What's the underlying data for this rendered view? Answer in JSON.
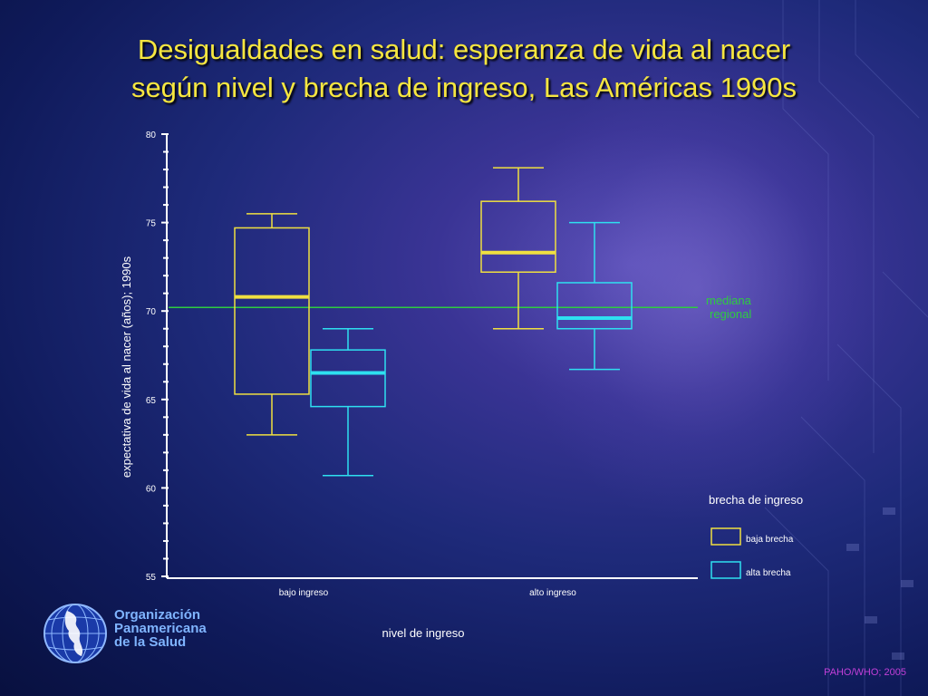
{
  "slide": {
    "title_line1": "Desigualdades en salud: esperanza de vida al nacer",
    "title_line2": "según nivel y brecha de ingreso, Las Américas 1990s",
    "credit": "PAHO/WHO; 2005"
  },
  "organization": {
    "line1": "Organización",
    "line2": "Panamericana",
    "line3": "de la Salud",
    "logo_icon": "globe-icon"
  },
  "chart_data": {
    "type": "boxplot",
    "ylabel": "expectativa de vida al nacer (años); 1990s",
    "xlabel": "nivel de ingreso",
    "ylim": [
      55,
      80
    ],
    "yticks": [
      55,
      60,
      65,
      70,
      75,
      80
    ],
    "ytick_labels": [
      "55",
      "60",
      "65",
      "70",
      "75",
      "80"
    ],
    "categories": [
      "bajo ingreso",
      "alto ingreso"
    ],
    "reference_line": {
      "value": 70.2,
      "label_line1": "mediana",
      "label_line2": "regional",
      "color": "#2ecc40"
    },
    "legend": {
      "title": "brecha de ingreso",
      "position": "bottom-right"
    },
    "series": [
      {
        "name": "baja brecha",
        "color": "#f0e040",
        "boxes": [
          {
            "min": 63.0,
            "q1": 65.3,
            "median": 70.8,
            "q3": 74.7,
            "max": 75.5
          },
          {
            "min": 69.0,
            "q1": 72.2,
            "median": 73.3,
            "q3": 76.2,
            "max": 78.1
          }
        ]
      },
      {
        "name": "alta brecha",
        "color": "#2ee0f0",
        "boxes": [
          {
            "min": 60.7,
            "q1": 64.6,
            "median": 66.5,
            "q3": 67.8,
            "max": 69.0
          },
          {
            "min": 66.7,
            "q1": 69.0,
            "median": 69.6,
            "q3": 71.6,
            "max": 75.0
          }
        ]
      }
    ]
  }
}
